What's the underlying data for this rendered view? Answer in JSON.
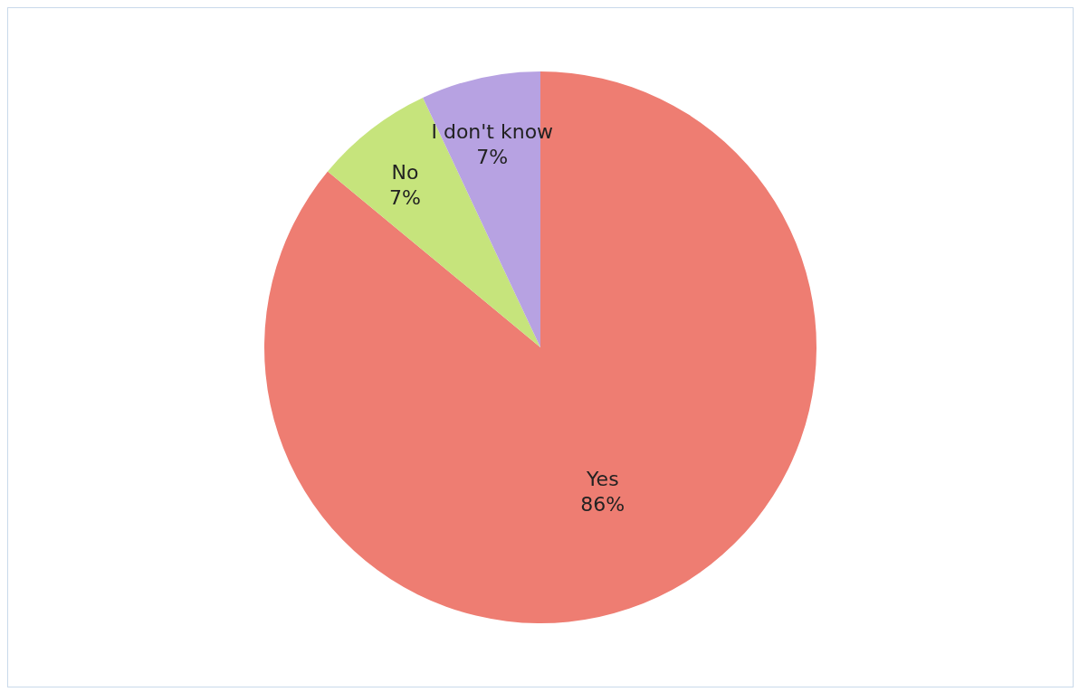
{
  "chart_data": {
    "type": "pie",
    "categories": [
      "Yes",
      "No",
      "I don't know"
    ],
    "values": [
      86,
      7,
      7
    ],
    "colors": [
      "#ee7d72",
      "#c6e47c",
      "#b7a2e2"
    ],
    "value_labels": [
      "86%",
      "7%",
      "7%"
    ]
  }
}
